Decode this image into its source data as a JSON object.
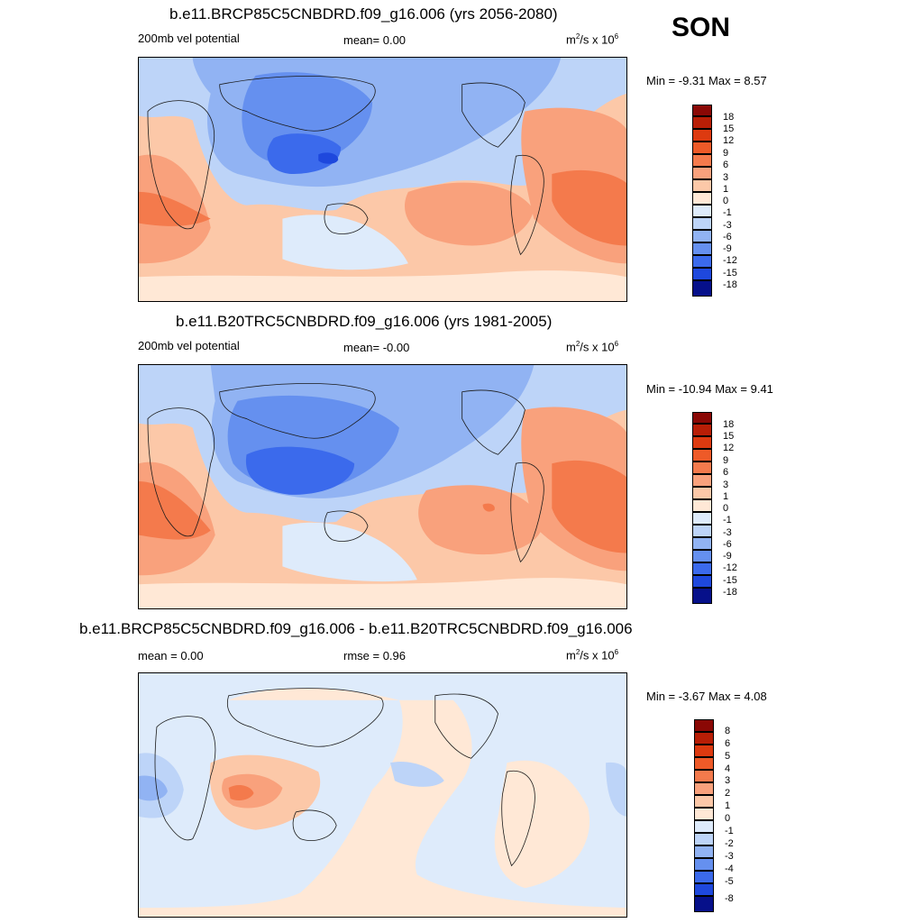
{
  "season": "SON",
  "colors": {
    "pos": [
      "#ffe8d6",
      "#fcc8a8",
      "#f9a17c",
      "#f47a4c",
      "#ee5a28",
      "#dd3a10",
      "#b81e06",
      "#8a0805"
    ],
    "neg": [
      "#deebfb",
      "#bdd4f8",
      "#91b3f3",
      "#6590ef",
      "#3b6aec",
      "#1e48dd",
      "#0d2eb8",
      "#06108a"
    ],
    "coast": "#1a1a1a"
  },
  "panels": [
    {
      "title": "b.e11.BRCP85C5CNBDRD.f09_g16.006 (yrs 2056-2080)",
      "left": "200mb vel potential",
      "center": "mean=   0.00",
      "units": "m²/s x 10⁶",
      "minmax": "Min =  -9.31 Max =   8.57",
      "levels": [
        "18",
        "15",
        "12",
        "9",
        "6",
        "3",
        "1",
        "0",
        "-1",
        "-3",
        "-6",
        "-9",
        "-12",
        "-15",
        "-18"
      ]
    },
    {
      "title": "b.e11.B20TRC5CNBDRD.f09_g16.006 (yrs 1981-2005)",
      "left": "200mb vel potential",
      "center": "mean=  -0.00",
      "units": "m²/s x 10⁶",
      "minmax": "Min = -10.94 Max =   9.41",
      "levels": [
        "18",
        "15",
        "12",
        "9",
        "6",
        "3",
        "1",
        "0",
        "-1",
        "-3",
        "-6",
        "-9",
        "-12",
        "-15",
        "-18"
      ]
    },
    {
      "title": "b.e11.BRCP85C5CNBDRD.f09_g16.006 - b.e11.B20TRC5CNBDRD.f09_g16.006",
      "left": "mean =   0.00",
      "center": "rmse =   0.96",
      "units": "m²/s x 10⁶",
      "minmax": "Min =  -3.67 Max =   4.08",
      "levels": [
        "8",
        "6",
        "5",
        "4",
        "3",
        "2",
        "1",
        "0",
        "-1",
        "-2",
        "-3",
        "-4",
        "-5",
        "-8"
      ]
    }
  ]
}
